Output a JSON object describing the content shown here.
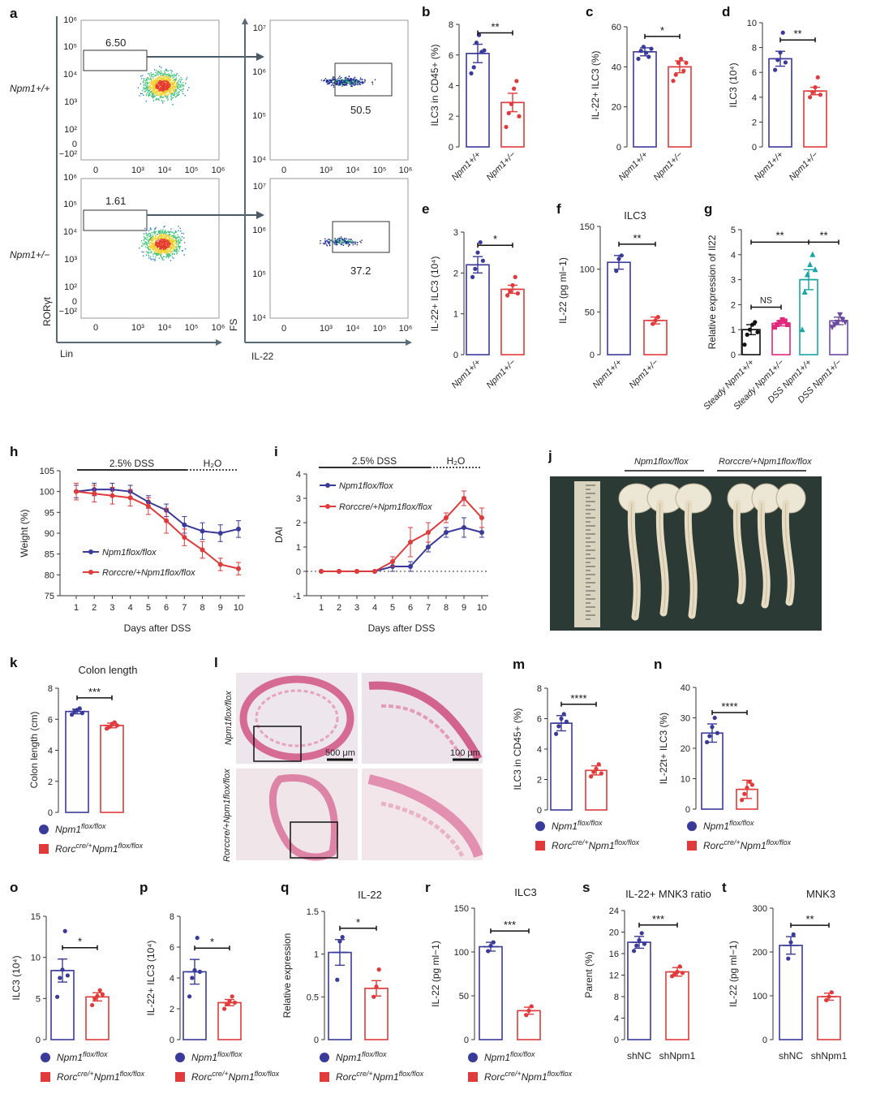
{
  "colors": {
    "wt": "#3a3a9a",
    "ko": "#e03a3a",
    "steady_wt": "#111111",
    "steady_ko": "#e2267a",
    "dss_wt": "#1aa5a5",
    "dss_ko": "#6b4aa0"
  },
  "panel_a": {
    "letter": "a",
    "row_labels": [
      "Npm1+/+",
      "Npm1+/−"
    ],
    "gates": [
      "6.50",
      "1.61",
      "50.5",
      "37.2"
    ],
    "y1_label": "RORγt",
    "x1_label": "Lin",
    "y2_label": "FS",
    "x2_label": "IL-22",
    "y1_ticks": [
      "10⁶",
      "10⁵",
      "10⁴",
      "10³",
      "10²",
      "0",
      "−10²"
    ],
    "x1_ticks": [
      "0",
      "10³",
      "10⁴",
      "10⁵",
      "10⁶"
    ],
    "y2_ticks": [
      "10⁷",
      "10⁶",
      "10⁵",
      "10⁴"
    ],
    "x2_ticks": [
      "0",
      "10³",
      "10⁴",
      "10⁵",
      "10⁶"
    ]
  },
  "legend": {
    "wt_flox": "Npm1",
    "wt_flox_sup": "flox/flox",
    "ko_rorc": "Rorc",
    "ko_rorc_sup": "cre/+",
    "ko_npm": "Npm1",
    "ko_npm_sup": "flox/flox"
  },
  "genotype_labels": {
    "wt": "Npm1+/+",
    "ko": "Npm1+/−"
  },
  "panel_l": {
    "letter": "l",
    "scale_left": "500 μm",
    "scale_right": "100 μm",
    "row1_label": "Npm1flox/flox",
    "row2_label": "Rorccre/+Npm1flox/flox"
  },
  "panel_j": {
    "letter": "j",
    "label_left": "Npm1flox/flox",
    "label_right": "Rorccre/+Npm1flox/flox"
  },
  "chart_data": [
    {
      "id": "b",
      "type": "bar",
      "ylabel": "ILC3 in CD45+ (%)",
      "ylim": [
        0,
        8
      ],
      "yticks": [
        0,
        2,
        4,
        6,
        8
      ],
      "categories": [
        "Npm1+/+",
        "Npm1+/−"
      ],
      "values": [
        6.1,
        2.9
      ],
      "errors": [
        0.6,
        0.6
      ],
      "points": [
        [
          4.8,
          5.2,
          6.8,
          7.3,
          6.2,
          6.3
        ],
        [
          1.3,
          2.2,
          2.8,
          3.8,
          4.3,
          2.0
        ]
      ],
      "sig": "**"
    },
    {
      "id": "c",
      "type": "bar",
      "ylabel": "IL-22+ ILC3 (%)",
      "ylim": [
        0,
        60
      ],
      "yticks": [
        0,
        20,
        40,
        60
      ],
      "categories": [
        "Npm1+/+",
        "Npm1+/−"
      ],
      "values": [
        47.5,
        40
      ],
      "errors": [
        2,
        3
      ],
      "points": [
        [
          44,
          48,
          50,
          47,
          45,
          49
        ],
        [
          33,
          36,
          42,
          44,
          38,
          42
        ]
      ],
      "sig": "*"
    },
    {
      "id": "d",
      "type": "bar",
      "ylabel": "ILC3 (10⁴)",
      "ylim": [
        0,
        10
      ],
      "yticks": [
        0,
        2,
        4,
        6,
        8,
        10
      ],
      "categories": [
        "Npm1+/+",
        "Npm1+/−"
      ],
      "values": [
        7.1,
        4.5
      ],
      "errors": [
        0.6,
        0.3
      ],
      "points": [
        [
          6.2,
          7.0,
          7.6,
          9.2,
          6.8
        ],
        [
          4.0,
          4.4,
          4.8,
          5.6,
          4.2
        ]
      ],
      "sig": "**"
    },
    {
      "id": "e",
      "type": "bar",
      "ylabel": "IL-22+ ILC3 (10⁴)",
      "ylim": [
        0,
        3
      ],
      "yticks": [
        0,
        1,
        2,
        3
      ],
      "categories": [
        "Npm1+/+",
        "Npm1+/−"
      ],
      "values": [
        2.2,
        1.6
      ],
      "errors": [
        0.2,
        0.1
      ],
      "points": [
        [
          1.9,
          2.1,
          2.5,
          2.75,
          2.3
        ],
        [
          1.45,
          1.55,
          1.7,
          1.9,
          1.5
        ]
      ],
      "sig": "*"
    },
    {
      "id": "f",
      "type": "bar",
      "title": "ILC3",
      "ylabel": "IL-22 (pg ml−1)",
      "ylim": [
        0,
        150
      ],
      "yticks": [
        0,
        50,
        100,
        150
      ],
      "categories": [
        "Npm1+/+",
        "Npm1+/−"
      ],
      "values": [
        108,
        40
      ],
      "errors": [
        8,
        4
      ],
      "points": [
        [
          98,
          112,
          116
        ],
        [
          36,
          40,
          44
        ]
      ],
      "sig": "**"
    },
    {
      "id": "g",
      "type": "bar",
      "ylabel": "Relative expression of Il22",
      "ylim": [
        0,
        5
      ],
      "yticks": [
        0,
        1,
        2,
        3,
        4,
        5
      ],
      "categories": [
        "Steady Npm1+/+",
        "Steady Npm1+/−",
        "DSS Npm1+/+",
        "DSS Npm1+/−"
      ],
      "values": [
        1.0,
        1.25,
        3.0,
        1.35
      ],
      "errors": [
        0.2,
        0.1,
        0.4,
        0.15
      ],
      "points": [
        [
          0.4,
          0.8,
          1.0,
          1.2,
          1.3,
          0.9
        ],
        [
          1.1,
          1.2,
          1.3,
          1.4,
          1.35,
          1.2
        ],
        [
          1.0,
          2.5,
          3.2,
          3.6,
          4.0,
          3.4
        ],
        [
          1.1,
          1.2,
          1.3,
          1.6,
          1.4,
          1.3
        ]
      ],
      "sig": "**",
      "sig2": "**",
      "sig_ns": "NS"
    },
    {
      "id": "h",
      "type": "line",
      "xlabel": "Days after DSS",
      "ylabel": "Weight (%)",
      "ylim": [
        75,
        105
      ],
      "yticks": [
        75,
        80,
        85,
        90,
        95,
        100,
        105
      ],
      "x": [
        1,
        2,
        3,
        4,
        5,
        6,
        7,
        8,
        9,
        10
      ],
      "treatment1": "2.5% DSS",
      "treatment2": "H₂O",
      "series": [
        {
          "name": "Npm1flox/flox",
          "values": [
            100,
            100.5,
            100.5,
            100,
            97.5,
            95.5,
            92,
            90.5,
            90,
            91
          ],
          "errors": [
            1.5,
            1.5,
            1.5,
            1.5,
            1.5,
            1.5,
            2,
            2,
            2,
            2
          ]
        },
        {
          "name": "Rorccre/+Npm1flox/flox",
          "values": [
            100,
            99.5,
            99,
            98.5,
            96.5,
            93,
            89,
            86,
            82.5,
            81.5
          ],
          "errors": [
            2,
            2,
            2,
            2,
            2,
            3,
            2,
            2,
            1.5,
            1.5
          ]
        }
      ]
    },
    {
      "id": "i",
      "type": "line",
      "xlabel": "Days after DSS",
      "ylabel": "DAI",
      "ylim": [
        -1,
        4
      ],
      "yticks": [
        -1,
        0,
        1,
        2,
        3,
        4
      ],
      "x": [
        1,
        2,
        3,
        4,
        5,
        6,
        7,
        8,
        9,
        10
      ],
      "treatment1": "2.5% DSS",
      "treatment2": "H₂O",
      "series": [
        {
          "name": "Npm1flox/flox",
          "values": [
            0,
            0,
            0,
            0,
            0.2,
            0.2,
            1.0,
            1.6,
            1.8,
            1.6
          ],
          "errors": [
            0,
            0,
            0,
            0,
            0.2,
            0.2,
            0.2,
            0.2,
            0.4,
            0.2
          ]
        },
        {
          "name": "Rorccre/+Npm1flox/flox",
          "values": [
            0,
            0,
            0,
            0,
            0.4,
            1.2,
            1.6,
            2.2,
            3.0,
            2.2
          ],
          "errors": [
            0,
            0,
            0,
            0,
            0.2,
            0.6,
            0.4,
            0.2,
            0.3,
            0.4
          ]
        }
      ]
    },
    {
      "id": "k",
      "type": "bar",
      "title": "Colon length",
      "ylabel": "Colon length (cm)",
      "ylim": [
        0,
        8
      ],
      "yticks": [
        0,
        2,
        4,
        6,
        8
      ],
      "values": [
        6.5,
        5.6
      ],
      "errors": [
        0.15,
        0.15
      ],
      "points": [
        [
          6.3,
          6.5,
          6.6,
          6.7,
          6.4
        ],
        [
          5.4,
          5.5,
          5.7,
          5.8,
          5.6
        ]
      ],
      "sig": "***"
    },
    {
      "id": "m",
      "type": "bar",
      "ylabel": "ILC3 in CD45+ (%)",
      "ylim": [
        0,
        8
      ],
      "yticks": [
        0,
        2,
        4,
        6,
        8
      ],
      "values": [
        5.7,
        2.6
      ],
      "errors": [
        0.5,
        0.3
      ],
      "points": [
        [
          5.0,
          5.5,
          6.0,
          6.3,
          5.8
        ],
        [
          2.2,
          2.5,
          2.7,
          3.0,
          2.4
        ]
      ],
      "sig": "****"
    },
    {
      "id": "n",
      "type": "bar",
      "ylabel": "IL-22t+ ILC3 (%)",
      "ylim": [
        0,
        40
      ],
      "yticks": [
        0,
        10,
        20,
        30,
        40
      ],
      "values": [
        25,
        6.5
      ],
      "errors": [
        3,
        3
      ],
      "points": [
        [
          22,
          24,
          27,
          30,
          25
        ],
        [
          3,
          5,
          7,
          9,
          8
        ]
      ],
      "sig": "****"
    },
    {
      "id": "o",
      "type": "bar",
      "ylabel": "ILC3 (10⁴)",
      "ylim": [
        0,
        15
      ],
      "yticks": [
        0,
        5,
        10,
        15
      ],
      "values": [
        8.4,
        5.2
      ],
      "errors": [
        1.4,
        0.5
      ],
      "points": [
        [
          5.2,
          7.5,
          8.5,
          13.2,
          7.8
        ],
        [
          4.2,
          5.0,
          5.3,
          6.0,
          5.5
        ]
      ],
      "sig": "*"
    },
    {
      "id": "p",
      "type": "bar",
      "ylabel": "IL-22+ ILC3 (10⁴)",
      "ylim": [
        0,
        8
      ],
      "yticks": [
        0,
        2,
        4,
        6,
        8
      ],
      "values": [
        4.4,
        2.4
      ],
      "errors": [
        0.8,
        0.2
      ],
      "points": [
        [
          2.8,
          4.0,
          4.5,
          6.6,
          4.4
        ],
        [
          2.0,
          2.3,
          2.5,
          2.8,
          2.4
        ]
      ],
      "sig": "*"
    },
    {
      "id": "q",
      "type": "bar",
      "title": "IL-22",
      "ylabel": "Relative expression",
      "ylim": [
        0,
        1.5
      ],
      "yticks": [
        0,
        0.5,
        1.0,
        1.5
      ],
      "values": [
        1.02,
        0.6
      ],
      "errors": [
        0.15,
        0.09
      ],
      "points": [
        [
          0.7,
          1.15,
          1.2
        ],
        [
          0.5,
          0.62,
          0.82
        ]
      ],
      "sig": "*"
    },
    {
      "id": "r",
      "type": "bar",
      "title": "ILC3",
      "ylabel": "IL-22 (pg ml−1)",
      "ylim": [
        0,
        150
      ],
      "yticks": [
        0,
        50,
        100,
        150
      ],
      "values": [
        106,
        33
      ],
      "errors": [
        5,
        4
      ],
      "points": [
        [
          101,
          107,
          111
        ],
        [
          28,
          33,
          38
        ]
      ],
      "sig": "***"
    },
    {
      "id": "s",
      "type": "bar",
      "title": "IL-22+ MNK3 ratio",
      "ylabel": "Parent (%)",
      "ylim": [
        0,
        24
      ],
      "yticks": [
        0,
        4,
        8,
        12,
        16,
        20,
        24
      ],
      "categories": [
        "shNC",
        "shNpm1"
      ],
      "values": [
        18.1,
        12.6
      ],
      "errors": [
        1.1,
        0.8
      ],
      "points": [
        [
          16.5,
          17.5,
          18.5,
          19.8,
          17.8
        ],
        [
          11.8,
          12.2,
          12.6,
          13.6,
          12.4
        ]
      ],
      "sig": "***"
    },
    {
      "id": "t",
      "type": "bar",
      "title": "MNK3",
      "ylabel": "IL-22 (pg ml−1)",
      "ylim": [
        0,
        300
      ],
      "yticks": [
        0,
        100,
        200,
        300
      ],
      "categories": [
        "shNC",
        "shNpm1"
      ],
      "values": [
        215,
        98
      ],
      "errors": [
        20,
        8
      ],
      "points": [
        [
          185,
          222,
          240
        ],
        [
          90,
          98,
          108
        ]
      ],
      "sig": "**"
    }
  ]
}
